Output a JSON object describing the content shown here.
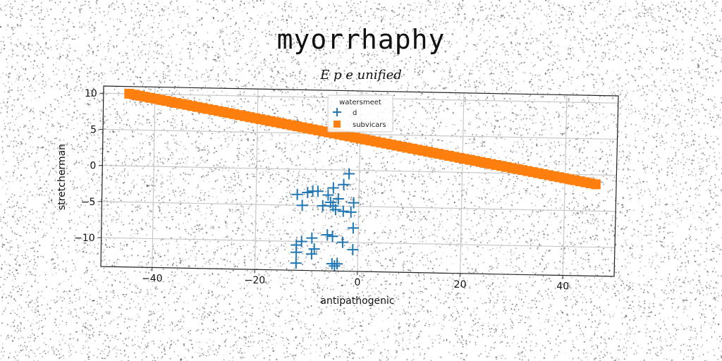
{
  "chart_data": {
    "type": "scatter",
    "title": "myorrhaphy",
    "subtitle": "E p e unified",
    "xlabel": "antipathogenic",
    "ylabel": "stretcherman",
    "xlim": [
      -50,
      50
    ],
    "ylim": [
      -14,
      11
    ],
    "xticks": [
      -40,
      -20,
      0,
      20,
      40
    ],
    "yticks": [
      -10,
      -5,
      0,
      5,
      10
    ],
    "grid": true,
    "legend": {
      "title": "watersmeet",
      "placement": "top-center"
    },
    "series": [
      {
        "name": "d",
        "marker": "plus",
        "color": "#1f77b4",
        "points": [
          [
            -2,
            -0.5
          ],
          [
            -3,
            -2
          ],
          [
            -5,
            -2.5
          ],
          [
            -8,
            -3
          ],
          [
            -9,
            -3
          ],
          [
            -10,
            -3.2
          ],
          [
            -12,
            -3.5
          ],
          [
            -6,
            -3.5
          ],
          [
            -4,
            -4
          ],
          [
            -5.5,
            -4.5
          ],
          [
            -1,
            -4.5
          ],
          [
            -7,
            -5
          ],
          [
            -11,
            -5
          ],
          [
            -5,
            -5
          ],
          [
            -4.5,
            -5.5
          ],
          [
            -3,
            -5.7
          ],
          [
            -1.5,
            -5.8
          ],
          [
            -1,
            -8
          ],
          [
            -6,
            -9
          ],
          [
            -5,
            -9.2
          ],
          [
            -9,
            -9.5
          ],
          [
            -11,
            -10
          ],
          [
            -3,
            -10
          ],
          [
            -12,
            -10.5
          ],
          [
            -8.5,
            -11
          ],
          [
            -1,
            -11
          ],
          [
            -12,
            -11.5
          ],
          [
            -9,
            -11.7
          ],
          [
            -12,
            -13
          ],
          [
            -5,
            -13
          ],
          [
            -4,
            -13
          ],
          [
            -4.5,
            -13.3
          ]
        ]
      },
      {
        "name": "subvicars",
        "marker": "square",
        "color": "#ff7f0e",
        "line": {
          "x0": -45,
          "y0": 10,
          "x1": 46,
          "y1": -1.3,
          "count": 90
        }
      }
    ]
  }
}
